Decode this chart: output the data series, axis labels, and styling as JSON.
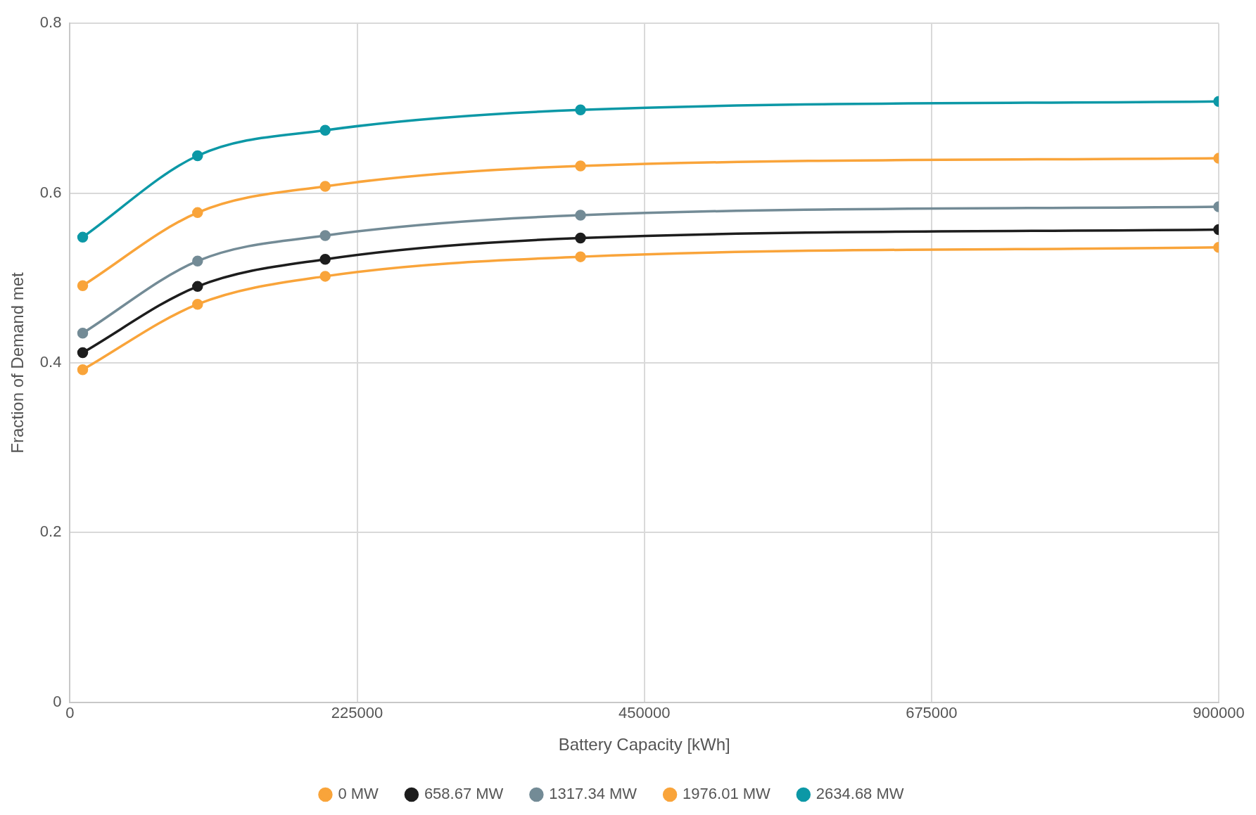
{
  "chart_data": {
    "type": "line",
    "xlabel": "Battery Capacity [kWh]",
    "ylabel": "Fraction of Demand met",
    "x": [
      10000,
      100000,
      200000,
      400000,
      900000
    ],
    "series": [
      {
        "name": "0 MW",
        "color": "#f9a43a",
        "values": [
          0.392,
          0.469,
          0.502,
          0.525,
          0.536
        ]
      },
      {
        "name": "658.67 MW",
        "color": "#1d1d1d",
        "values": [
          0.412,
          0.49,
          0.522,
          0.547,
          0.557
        ]
      },
      {
        "name": "1317.34 MW",
        "color": "#738b96",
        "values": [
          0.435,
          0.52,
          0.55,
          0.574,
          0.584
        ]
      },
      {
        "name": "1976.01 MW",
        "color": "#f9a43a",
        "values": [
          0.491,
          0.577,
          0.608,
          0.632,
          0.641
        ]
      },
      {
        "name": "2634.68 MW",
        "color": "#0c98a6",
        "values": [
          0.548,
          0.644,
          0.674,
          0.698,
          0.708
        ]
      }
    ],
    "xlim": [
      0,
      900000
    ],
    "xticks": [
      0,
      225000,
      450000,
      675000,
      900000
    ],
    "ylim": [
      0,
      0.8
    ],
    "yticks": [
      0,
      0.2,
      0.4,
      0.6,
      0.8
    ],
    "grid": true,
    "legend": "bottom",
    "marker": "circle",
    "line_style": "solid"
  }
}
